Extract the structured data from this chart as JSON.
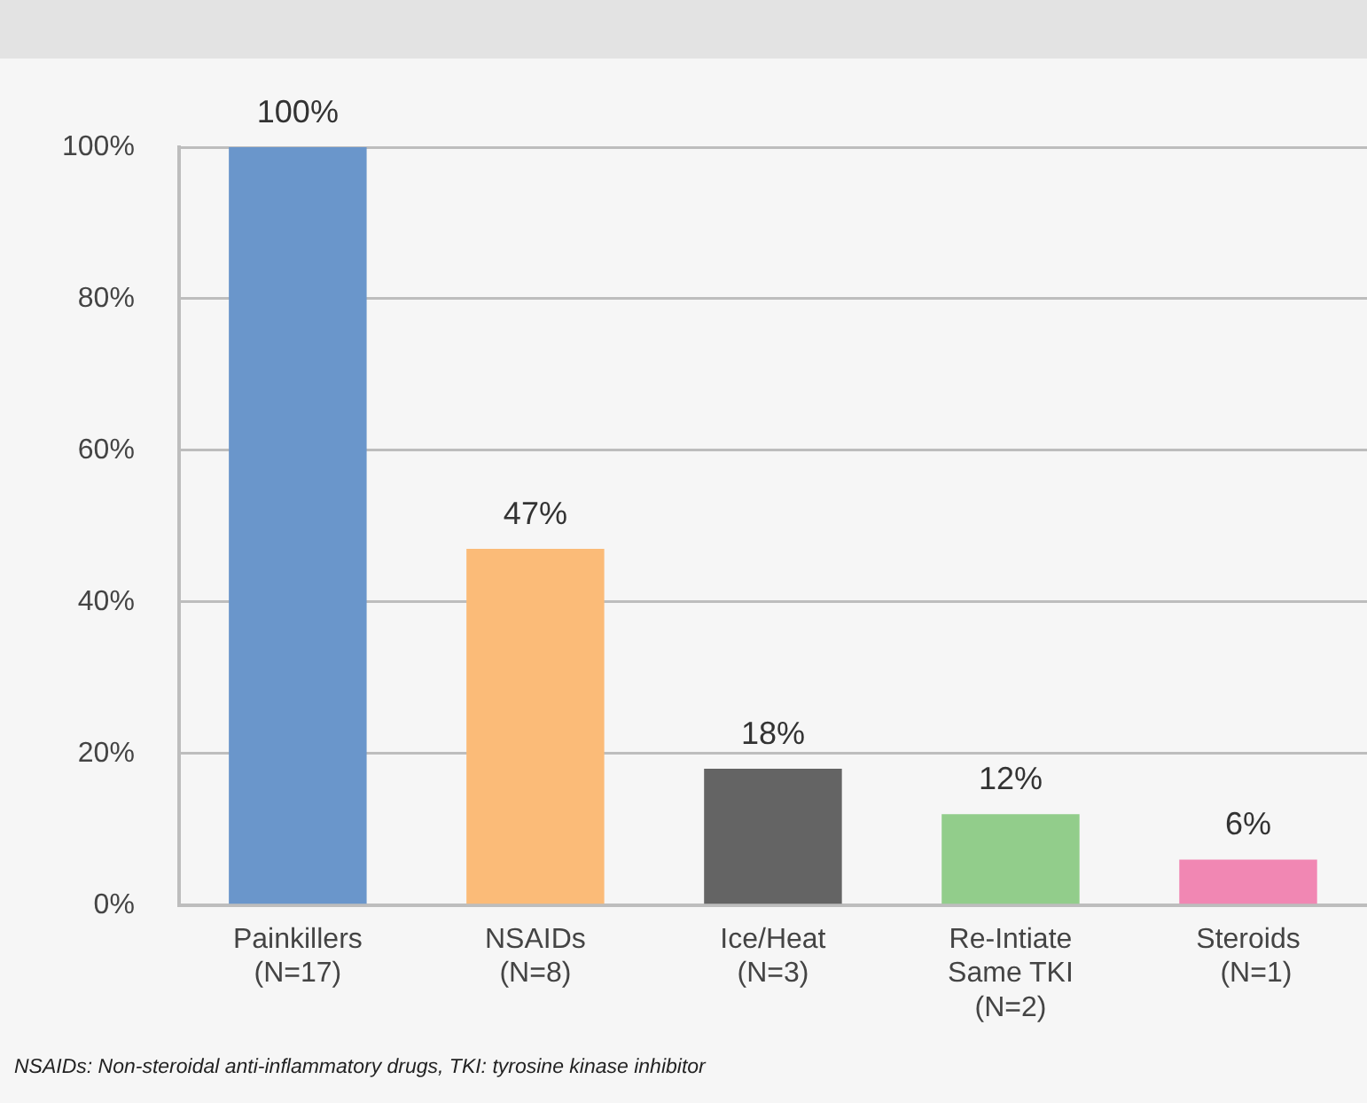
{
  "chart_data": {
    "type": "bar",
    "categories": [
      "Painkillers\n(N=17)",
      "NSAIDs\n(N=8)",
      "Ice/Heat\n(N=3)",
      "Re-Intiate\nSame TKI\n(N=2)",
      "Steroids\n  (N=1)"
    ],
    "values": [
      100,
      47,
      18,
      12,
      6
    ],
    "value_labels": [
      "100%",
      "47%",
      "18%",
      "12%",
      "6%"
    ],
    "colors": [
      "#6a96cb",
      "#fbbb78",
      "#646464",
      "#92cd8b",
      "#f187b3"
    ],
    "ylim": [
      0,
      100
    ],
    "yticks": [
      {
        "value": 0,
        "label": "0%"
      },
      {
        "value": 20,
        "label": "20%"
      },
      {
        "value": 40,
        "label": "40%"
      },
      {
        "value": 60,
        "label": "60%"
      },
      {
        "value": 80,
        "label": "80%"
      },
      {
        "value": 100,
        "label": "100%"
      }
    ],
    "grid": "y",
    "legend": false,
    "annotations": [
      "NSAIDs: Non-steroidal anti-inflammatory drugs, TKI: tyrosine kinase inhibitor"
    ]
  }
}
